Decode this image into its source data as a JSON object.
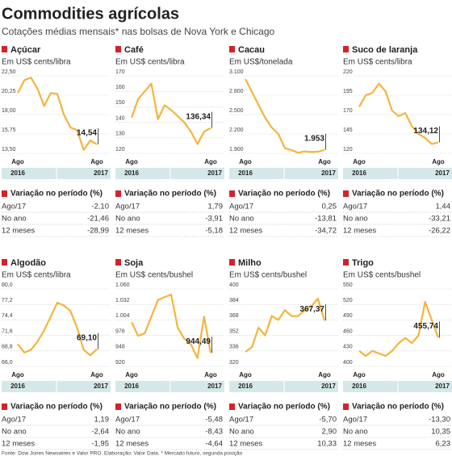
{
  "title": "Commodities agrícolas",
  "subtitle": "Cotações médias mensais* nas bolsas de Nova York e Chicago",
  "source": "Fonte: Dow Jones Newswires e Valor PRO. Elaboração: Valor Data. * Mercado futuro, segunda posição",
  "chart_data": [
    {
      "type": "line",
      "title": "Açúcar",
      "unit": "Em US$ cents/libra",
      "color": "#f5b43c",
      "grid": true,
      "categories": [
        "Ago",
        null,
        null,
        null,
        null,
        null,
        null,
        null,
        null,
        null,
        null,
        null,
        "Ago"
      ],
      "years": [
        "2016",
        "2017"
      ],
      "values": [
        20.5,
        22,
        22.3,
        21,
        19,
        20.5,
        20.4,
        18,
        16.5,
        16.2,
        13.9,
        15,
        14.54
      ],
      "value_labels": [
        null,
        null,
        null,
        null,
        null,
        null,
        null,
        null,
        null,
        null,
        null,
        null,
        "14,54"
      ],
      "ylim": [
        13.5,
        22.5
      ],
      "yticks": [
        {
          "value": 13.5,
          "label": "13,50"
        },
        {
          "value": 15.75,
          "label": "15,75"
        },
        {
          "value": 18,
          "label": "18,00"
        },
        {
          "value": 20.25,
          "label": "20,25"
        },
        {
          "value": 22.5,
          "label": "22,50"
        }
      ],
      "table": {
        "title": "Variação no período (%)",
        "rows": [
          [
            "Ago/17",
            "-2,10"
          ],
          [
            "No ano",
            "-21,46"
          ],
          [
            "12 meses",
            "-28,99"
          ]
        ]
      }
    },
    {
      "type": "line",
      "title": "Café",
      "unit": "Em US$ cents/libra",
      "color": "#f5b43c",
      "grid": true,
      "categories": [
        "Ago",
        null,
        null,
        null,
        null,
        null,
        null,
        null,
        null,
        null,
        null,
        null,
        "Ago"
      ],
      "years": [
        "2016",
        "2017"
      ],
      "values": [
        143,
        155,
        160,
        165,
        142,
        151,
        148,
        144,
        140,
        134,
        126,
        134,
        136.34
      ],
      "value_labels": [
        null,
        null,
        null,
        null,
        null,
        null,
        null,
        null,
        null,
        null,
        null,
        null,
        "136,34"
      ],
      "ylim": [
        120,
        170
      ],
      "yticks": [
        120,
        130,
        140,
        150,
        160,
        170
      ],
      "table": {
        "title": "Variação no período (%)",
        "rows": [
          [
            "Ago/17",
            "1,79"
          ],
          [
            "No ano",
            "-3,91"
          ],
          [
            "12 meses",
            "-5,18"
          ]
        ]
      }
    },
    {
      "type": "line",
      "title": "Cacau",
      "unit": "Em US$/tonelada",
      "color": "#f5b43c",
      "grid": true,
      "categories": [
        "Ago",
        null,
        null,
        null,
        null,
        null,
        null,
        null,
        null,
        null,
        null,
        null,
        "Ago"
      ],
      "years": [
        "2016",
        "2017"
      ],
      "values": [
        3050,
        2850,
        2650,
        2450,
        2300,
        2200,
        1980,
        1950,
        1910,
        1930,
        1920,
        1925,
        1953
      ],
      "value_labels": [
        null,
        null,
        null,
        null,
        null,
        null,
        null,
        null,
        null,
        null,
        null,
        null,
        "1.953"
      ],
      "ylim": [
        1900,
        3100
      ],
      "yticks": [
        {
          "value": 1900,
          "label": "1.900"
        },
        {
          "value": 2200,
          "label": "2.200"
        },
        {
          "value": 2500,
          "label": "2.500"
        },
        {
          "value": 2800,
          "label": "2.800"
        },
        {
          "value": 3100,
          "label": "3.100"
        }
      ],
      "table": {
        "title": "Variação no período (%)",
        "rows": [
          [
            "Ago/17",
            "0,25"
          ],
          [
            "No ano",
            "-13,81"
          ],
          [
            "12 meses",
            "-34,72"
          ]
        ]
      }
    },
    {
      "type": "line",
      "title": "Suco de laranja",
      "unit": "Em US$ cents/libra",
      "color": "#f5b43c",
      "grid": true,
      "categories": [
        "Ago",
        null,
        null,
        null,
        null,
        null,
        null,
        null,
        null,
        null,
        null,
        null,
        "Ago"
      ],
      "years": [
        "2016",
        "2017"
      ],
      "values": [
        180,
        195,
        198,
        210,
        200,
        175,
        168,
        172,
        155,
        145,
        140,
        132,
        134.12
      ],
      "value_labels": [
        null,
        null,
        null,
        null,
        null,
        null,
        null,
        null,
        null,
        null,
        null,
        null,
        "134,12"
      ],
      "ylim": [
        120,
        220
      ],
      "yticks": [
        120,
        145,
        170,
        195,
        220
      ],
      "table": {
        "title": "Variação no período (%)",
        "rows": [
          [
            "Ago/17",
            "1,44"
          ],
          [
            "No ano",
            "-33,21"
          ],
          [
            "12 meses",
            "-26,22"
          ]
        ]
      }
    },
    {
      "type": "line",
      "title": "Algodão",
      "unit": "Em US$ cents/libra",
      "color": "#f5b43c",
      "grid": true,
      "categories": [
        "Ago",
        null,
        null,
        null,
        null,
        null,
        null,
        null,
        null,
        null,
        null,
        null,
        "Ago"
      ],
      "years": [
        "2016",
        "2017"
      ],
      "values": [
        70,
        68.5,
        69,
        70.5,
        72.5,
        75,
        77.5,
        77,
        76,
        73,
        69,
        68,
        69.1
      ],
      "value_labels": [
        null,
        null,
        null,
        null,
        null,
        null,
        null,
        null,
        null,
        null,
        null,
        null,
        "69,10"
      ],
      "ylim": [
        66,
        80
      ],
      "yticks": [
        {
          "value": 66,
          "label": "66,0"
        },
        {
          "value": 68.8,
          "label": "68,8"
        },
        {
          "value": 71.6,
          "label": "71,6"
        },
        {
          "value": 74.4,
          "label": "74,4"
        },
        {
          "value": 77.2,
          "label": "77,2"
        },
        {
          "value": 80,
          "label": "80,0"
        }
      ],
      "table": {
        "title": "Variação no período (%)",
        "rows": [
          [
            "Ago/17",
            "1,19"
          ],
          [
            "No ano",
            "-2,64"
          ],
          [
            "12 meses",
            "-1,95"
          ]
        ]
      }
    },
    {
      "type": "line",
      "title": "Soja",
      "unit": "Em US$ cents/bushel",
      "color": "#f5b43c",
      "grid": true,
      "categories": [
        "Ago",
        null,
        null,
        null,
        null,
        null,
        null,
        null,
        null,
        null,
        null,
        null,
        "Ago"
      ],
      "years": [
        "2016",
        "2017"
      ],
      "values": [
        1000,
        975,
        980,
        1010,
        1040,
        1045,
        1050,
        990,
        970,
        960,
        935,
        1010,
        944.49
      ],
      "value_labels": [
        null,
        null,
        null,
        null,
        null,
        null,
        null,
        null,
        null,
        null,
        null,
        null,
        "944,49"
      ],
      "ylim": [
        920,
        1060
      ],
      "yticks": [
        920,
        948,
        976,
        {
          "value": 1004,
          "label": "1.004"
        },
        {
          "value": 1032,
          "label": "1.032"
        },
        {
          "value": 1060,
          "label": "1.060"
        }
      ],
      "table": {
        "title": "Variação no período (%)",
        "rows": [
          [
            "Ago/17",
            "-5,48"
          ],
          [
            "No ano",
            "-8,43"
          ],
          [
            "12 meses",
            "-4,64"
          ]
        ]
      }
    },
    {
      "type": "line",
      "title": "Milho",
      "unit": "Em US$ cents/bushel",
      "color": "#f5b43c",
      "grid": true,
      "categories": [
        "Ago",
        null,
        null,
        null,
        null,
        null,
        null,
        null,
        null,
        null,
        null,
        null,
        "Ago"
      ],
      "years": [
        "2016",
        "2017"
      ],
      "values": [
        335,
        340,
        360,
        352,
        372,
        368,
        378,
        372,
        372,
        378,
        382,
        390,
        367.37
      ],
      "value_labels": [
        null,
        null,
        null,
        null,
        null,
        null,
        null,
        null,
        null,
        null,
        null,
        null,
        "367,37"
      ],
      "ylim": [
        320,
        400
      ],
      "yticks": [
        320,
        336,
        352,
        368,
        384,
        400
      ],
      "table": {
        "title": "Variação no período (%)",
        "rows": [
          [
            "Ago/17",
            "-5,70"
          ],
          [
            "No ano",
            "2,90"
          ],
          [
            "12 meses",
            "10,33"
          ]
        ]
      }
    },
    {
      "type": "line",
      "title": "Trigo",
      "unit": "Em US$ cents/bushel",
      "color": "#f5b43c",
      "grid": true,
      "categories": [
        "Ago",
        null,
        null,
        null,
        null,
        null,
        null,
        null,
        null,
        null,
        null,
        null,
        "Ago"
      ],
      "years": [
        "2016",
        "2017"
      ],
      "values": [
        430,
        420,
        430,
        425,
        420,
        430,
        445,
        455,
        445,
        460,
        525,
        490,
        455.74
      ],
      "value_labels": [
        null,
        null,
        null,
        null,
        null,
        null,
        null,
        null,
        null,
        null,
        null,
        null,
        "455,74"
      ],
      "ylim": [
        400,
        550
      ],
      "yticks": [
        400,
        430,
        460,
        490,
        520,
        550
      ],
      "table": {
        "title": "Variação no período (%)",
        "rows": [
          [
            "Ago/17",
            "-13,30"
          ],
          [
            "No ano",
            "10,35"
          ],
          [
            "12 meses",
            "6,23"
          ]
        ]
      }
    }
  ]
}
